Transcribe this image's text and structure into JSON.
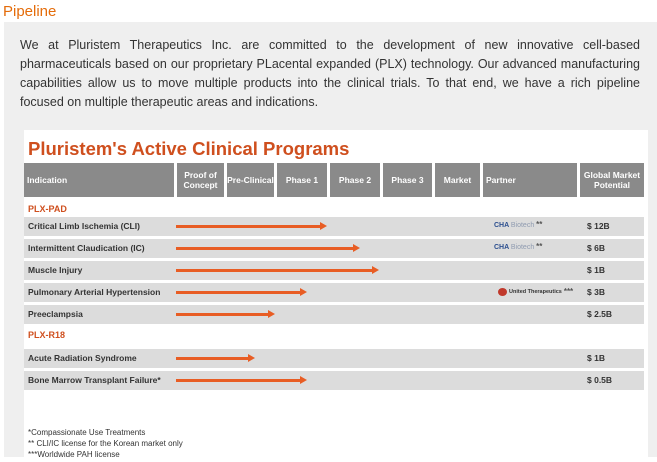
{
  "page": {
    "title": "Pipeline",
    "intro": "We at Pluristem Therapeutics Inc. are committed to the development of new innovative cell-based pharmaceuticals based on our proprietary PLacental expanded (PLX) technology. Our advanced manufacturing capabilities allow us to move multiple products into the clinical trials. To that end, we have a rich pipeline focused on multiple therapeutic areas and indications."
  },
  "figure": {
    "title": "Pluristem's Active Clinical Programs",
    "headers": {
      "indication": "Indication",
      "proof": "Proof of Concept",
      "preclinical": "Pre-Clinical",
      "phase1": "Phase 1",
      "phase2": "Phase 2",
      "phase3": "Phase 3",
      "market": "Market",
      "partner": "Partner",
      "potential": "Global Market Potential"
    },
    "groups": [
      "PLX-PAD",
      "PLX-R18"
    ],
    "rows": [
      {
        "indication": "Critical Limb Ischemia (CLI)",
        "partner_a": "CHA",
        "partner_b": "Biotech",
        "stars": "**",
        "potential": "$ 12B",
        "bar_color": "#e85d24"
      },
      {
        "indication": "Intermittent Claudication (IC)",
        "partner_a": "CHA",
        "partner_b": "Biotech",
        "stars": "**",
        "potential": "$ 6B",
        "bar_color": "#e85d24"
      },
      {
        "indication": "Muscle Injury",
        "potential": "$ 1B",
        "bar_color": "#e85d24"
      },
      {
        "indication": "Pulmonary Arterial Hypertension",
        "partner_a": "United Therapeutics",
        "stars": "***",
        "potential": "$ 3B",
        "bar_color": "#e85d24"
      },
      {
        "indication": "Preeclampsia",
        "potential": "$ 2.5B",
        "bar_color": "#e85d24"
      },
      {
        "indication": "Acute Radiation Syndrome",
        "potential": "$ 1B",
        "bar_color": "#e85d24"
      },
      {
        "indication": "Bone Marrow Transplant Failure*",
        "potential": "$ 0.5B",
        "bar_color": "#e85d24"
      }
    ],
    "footnotes": [
      "*Compassionate Use Treatments",
      "** CLI/IC license for the Korean market only",
      "***Worldwide PAH license"
    ]
  }
}
